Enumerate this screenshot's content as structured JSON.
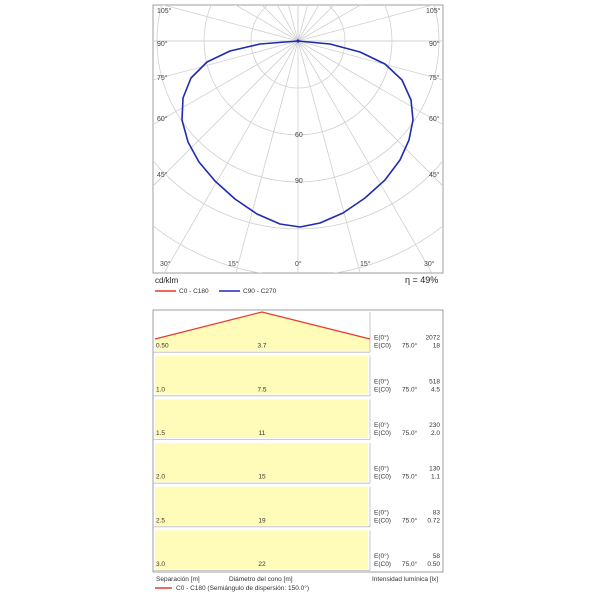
{
  "polar": {
    "unit": "cd/klm",
    "efficiency": "η = 49%",
    "angle_labels_left": [
      "105°",
      "90°",
      "75°",
      "60°",
      "45°",
      "30°"
    ],
    "angle_labels_right": [
      "105°",
      "90°",
      "75°",
      "60°",
      "45°",
      "30°"
    ],
    "angle_labels_bottom": [
      "15°",
      "0°",
      "15°"
    ],
    "radial_labels": [
      "60",
      "90"
    ],
    "legend": [
      {
        "label": "C0 - C180",
        "color": "#e8392b"
      },
      {
        "label": "C90 - C270",
        "color": "#1f2bb0"
      }
    ],
    "curve_color": "#1f2bb0",
    "grid_color": "#cfcfcf"
  },
  "chart_data": {
    "type": "table",
    "title": "",
    "rows": [
      {
        "separation": "0.50",
        "diameter": "3.7",
        "e0": "2072",
        "ec0": "18"
      },
      {
        "separation": "1.0",
        "diameter": "7.5",
        "e0": "518",
        "ec0": "4.5"
      },
      {
        "separation": "1.5",
        "diameter": "11",
        "e0": "230",
        "ec0": "2.0"
      },
      {
        "separation": "2.0",
        "diameter": "15",
        "e0": "130",
        "ec0": "1.1"
      },
      {
        "separation": "2.5",
        "diameter": "19",
        "e0": "83",
        "ec0": "0.72"
      },
      {
        "separation": "3.0",
        "diameter": "22",
        "e0": "58",
        "ec0": "0.50"
      }
    ],
    "e0_label": "E(0°)",
    "ec0_label": "E(C0)",
    "ec0_angle": "75.0°",
    "xlabel_left": "Separación [m]",
    "xlabel_center": "Diámetro del cono [m]",
    "xlabel_right": "Intensidad lumínica [lx]",
    "legend": "C0 - C180 (Semiángulo de dispersión: 150.0°)",
    "cone_color": "#e8392b",
    "fill_color": "#fffbb8"
  }
}
